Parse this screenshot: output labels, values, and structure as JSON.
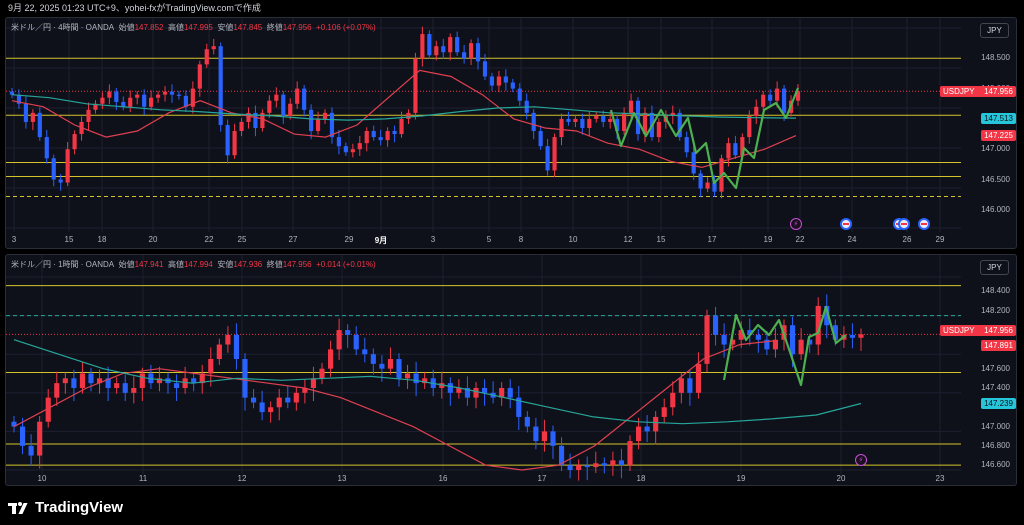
{
  "header": {
    "text": "9月 22, 2025 01:23 UTC+9、yohei-fxがTradingView.comで作成"
  },
  "panes": [
    {
      "id": "pane1",
      "title": {
        "symbol": "米ドル／円 · 4時間 · OANDA",
        "o_label": "始値",
        "o": "147.852",
        "h_label": "高値",
        "h": "147.995",
        "l_label": "安値",
        "l": "147.845",
        "c_label": "終値",
        "c": "147.956",
        "chg": "+0.106 (+0.07%)"
      },
      "currency_button": "JPY",
      "price_axis": [
        "148.500",
        "148.000",
        "147.000",
        "146.500",
        "146.000"
      ],
      "tags": [
        {
          "label": "USDJPY",
          "value": "147.956",
          "color": "#f23645"
        },
        {
          "value": "147.513",
          "color": "#26c6da"
        },
        {
          "value": "147.225",
          "color": "#f23645"
        }
      ],
      "time_axis": [
        "3",
        "15",
        "18",
        "20",
        "22",
        "25",
        "27",
        "29",
        "9月",
        "3",
        "5",
        "8",
        "10",
        "12",
        "15",
        "17",
        "19",
        "22",
        "24",
        "26",
        "29"
      ]
    },
    {
      "id": "pane2",
      "title": {
        "symbol": "米ドル／円 · 1時間 · OANDA",
        "o_label": "始値",
        "o": "147.941",
        "h_label": "高値",
        "h": "147.994",
        "l_label": "安値",
        "l": "147.936",
        "c_label": "終値",
        "c": "147.956",
        "chg": "+0.014 (+0.01%)"
      },
      "currency_button": "JPY",
      "price_axis": [
        "148.400",
        "148.200",
        "147.800",
        "147.600",
        "147.400",
        "147.000",
        "146.800",
        "146.600"
      ],
      "tags": [
        {
          "label": "USDJPY",
          "value": "147.956",
          "color": "#f23645"
        },
        {
          "value": "147.891",
          "color": "#f23645"
        },
        {
          "value": "147.239",
          "color": "#26c6da"
        }
      ],
      "time_axis": [
        "10",
        "11",
        "12",
        "13",
        "16",
        "17",
        "18",
        "19",
        "20",
        "23"
      ]
    }
  ],
  "footer": {
    "brand": "TradingView"
  },
  "colors": {
    "up": "#f23645",
    "down": "#2962ff",
    "ma_fast": "#e04050",
    "ma_slow": "#26a69a",
    "level": "#d4c42a",
    "pattern": "#4caf50"
  },
  "chart_data": [
    {
      "type": "candlestick",
      "symbol": "米ドル／円 · 4時間 · OANDA",
      "price_range": [
        145.7,
        149.0
      ],
      "levels": [
        148.5,
        147.56,
        146.78,
        146.55
      ],
      "dashed_level": 146.22,
      "current": 147.956,
      "close_path": [
        147.9,
        147.75,
        147.45,
        147.6,
        147.2,
        146.85,
        146.5,
        146.45,
        147.0,
        147.25,
        147.45,
        147.65,
        147.75,
        147.85,
        147.95,
        147.78,
        147.7,
        147.85,
        147.9,
        147.7,
        147.85,
        147.9,
        147.95,
        147.9,
        147.88,
        147.7,
        148.0,
        148.4,
        148.65,
        148.7,
        147.4,
        146.9,
        147.3,
        147.45,
        147.6,
        147.35,
        147.6,
        147.8,
        147.9,
        147.55,
        147.75,
        148.0,
        147.65,
        147.3,
        147.5,
        147.6,
        147.2,
        147.05,
        146.95,
        147.0,
        147.1,
        147.3,
        147.2,
        147.15,
        147.3,
        147.25,
        147.5,
        147.6,
        148.5,
        148.9,
        148.55,
        148.7,
        148.6,
        148.85,
        148.6,
        148.5,
        148.75,
        148.45,
        148.2,
        148.05,
        148.2,
        148.1,
        148.0,
        147.8,
        147.6,
        147.3,
        147.05,
        146.65,
        147.2,
        147.5,
        147.45,
        147.5,
        147.35,
        147.5,
        147.55,
        147.45,
        147.5,
        147.3,
        147.6,
        147.8,
        147.25,
        147.6,
        147.2,
        147.45,
        147.55,
        147.6,
        147.2,
        146.95,
        146.6,
        146.35,
        146.45,
        146.3,
        146.85,
        147.1,
        146.9,
        147.2,
        147.55,
        147.7,
        147.9,
        147.8,
        148.0,
        147.6,
        147.8,
        147.956
      ],
      "moving_averages": [
        {
          "values": [
            147.8,
            147.7,
            147.4,
            147.2,
            147.3,
            147.6,
            147.8,
            147.6,
            147.5,
            147.25,
            147.2,
            147.4,
            147.85,
            148.3,
            148.2,
            147.9,
            147.5,
            147.35,
            147.3,
            147.1,
            147.0,
            146.8,
            146.7,
            146.85,
            147.0,
            147.225
          ]
        },
        {
          "values": [
            147.9,
            147.85,
            147.75,
            147.7,
            147.65,
            147.62,
            147.58,
            147.55,
            147.5,
            147.48,
            147.5,
            147.55,
            147.62,
            147.68,
            147.7,
            147.65,
            147.6,
            147.58,
            147.55,
            147.53,
            147.52,
            147.513
          ]
        }
      ]
    },
    {
      "type": "candlestick",
      "symbol": "米ドル／円 · 1時間 · OANDA",
      "price_range": [
        146.55,
        148.55
      ],
      "levels": [
        148.46,
        147.56,
        146.82,
        146.6
      ],
      "dashed_level": 148.15,
      "current": 147.956,
      "close_path": [
        147.0,
        146.8,
        146.7,
        147.05,
        147.3,
        147.45,
        147.5,
        147.4,
        147.55,
        147.45,
        147.5,
        147.4,
        147.45,
        147.35,
        147.4,
        147.55,
        147.45,
        147.5,
        147.45,
        147.4,
        147.5,
        147.45,
        147.55,
        147.7,
        147.85,
        147.95,
        147.7,
        147.3,
        147.25,
        147.15,
        147.2,
        147.3,
        147.25,
        147.35,
        147.4,
        147.5,
        147.6,
        147.8,
        148.0,
        147.95,
        147.8,
        147.75,
        147.65,
        147.6,
        147.7,
        147.5,
        147.55,
        147.45,
        147.5,
        147.4,
        147.45,
        147.35,
        147.4,
        147.3,
        147.4,
        147.35,
        147.3,
        147.4,
        147.3,
        147.1,
        147.0,
        146.85,
        146.95,
        146.8,
        146.6,
        146.55,
        146.6,
        146.58,
        146.62,
        146.6,
        146.65,
        146.6,
        146.85,
        147.0,
        146.95,
        147.1,
        147.2,
        147.35,
        147.5,
        147.35,
        147.65,
        148.15,
        147.95,
        147.85,
        147.9,
        148.0,
        147.95,
        147.9,
        147.8,
        147.9,
        148.05,
        147.75,
        147.9,
        147.85,
        148.25,
        148.05,
        147.9,
        147.95,
        147.92,
        147.956
      ],
      "moving_averages": [
        {
          "values": [
            147.0,
            147.2,
            147.4,
            147.55,
            147.6,
            147.55,
            147.5,
            147.45,
            147.4,
            147.3,
            147.15,
            147.0,
            146.8,
            146.6,
            146.55,
            146.6,
            146.8,
            147.1,
            147.4,
            147.7,
            147.85,
            147.891
          ]
        },
        {
          "values": [
            147.9,
            147.75,
            147.6,
            147.5,
            147.45,
            147.5,
            147.48,
            147.5,
            147.52,
            147.48,
            147.4,
            147.3,
            147.2,
            147.1,
            147.05,
            147.03,
            147.05,
            147.08,
            147.12,
            147.239
          ]
        }
      ]
    }
  ]
}
